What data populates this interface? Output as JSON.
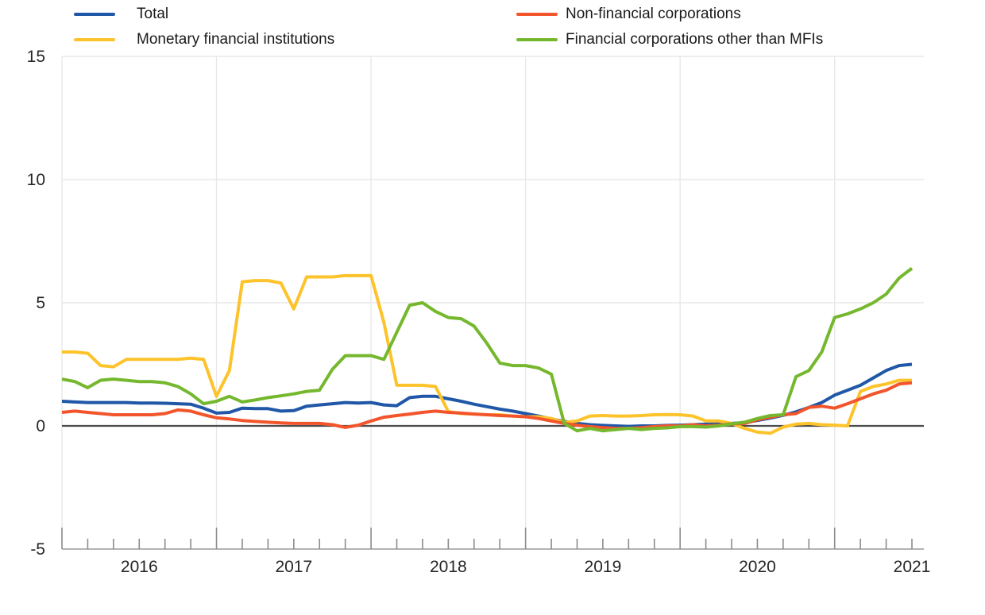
{
  "chart_data": {
    "type": "line",
    "title": "",
    "xlabel": "",
    "ylabel": "",
    "ylim": [
      -5,
      15
    ],
    "y_ticks": [
      -5,
      0,
      5,
      10,
      15
    ],
    "grid": {
      "horizontal_gridlines_at": [
        5,
        10,
        15
      ],
      "vertical_gridlines": "january-of-each-year",
      "zero_line": true,
      "zero_line_color": "#4d4d4d",
      "gridline_color": "#e8e8e8"
    },
    "legend": {
      "position": "top",
      "columns": 2
    },
    "x_axis": {
      "minor_tick_every_months": 2,
      "major_tick_at": "january",
      "year_labels": [
        "2016",
        "2017",
        "2018",
        "2019",
        "2020",
        "2021"
      ]
    },
    "x": [
      "2016-01",
      "2016-02",
      "2016-03",
      "2016-04",
      "2016-05",
      "2016-06",
      "2016-07",
      "2016-08",
      "2016-09",
      "2016-10",
      "2016-11",
      "2016-12",
      "2017-01",
      "2017-02",
      "2017-03",
      "2017-04",
      "2017-05",
      "2017-06",
      "2017-07",
      "2017-08",
      "2017-09",
      "2017-10",
      "2017-11",
      "2017-12",
      "2018-01",
      "2018-02",
      "2018-03",
      "2018-04",
      "2018-05",
      "2018-06",
      "2018-07",
      "2018-08",
      "2018-09",
      "2018-10",
      "2018-11",
      "2018-12",
      "2019-01",
      "2019-02",
      "2019-03",
      "2019-04",
      "2019-05",
      "2019-06",
      "2019-07",
      "2019-08",
      "2019-09",
      "2019-10",
      "2019-11",
      "2019-12",
      "2020-01",
      "2020-02",
      "2020-03",
      "2020-04",
      "2020-05",
      "2020-06",
      "2020-07",
      "2020-08",
      "2020-09",
      "2020-10",
      "2020-11",
      "2020-12",
      "2021-01",
      "2021-02",
      "2021-03",
      "2021-04",
      "2021-05",
      "2021-06",
      "2021-07"
    ],
    "series": [
      {
        "name": "Total",
        "color": "#2057a7",
        "values": [
          1.0,
          0.97,
          0.95,
          0.95,
          0.95,
          0.95,
          0.93,
          0.93,
          0.92,
          0.9,
          0.88,
          0.72,
          0.52,
          0.55,
          0.72,
          0.7,
          0.7,
          0.6,
          0.62,
          0.8,
          0.85,
          0.9,
          0.95,
          0.93,
          0.95,
          0.85,
          0.82,
          1.15,
          1.2,
          1.2,
          1.1,
          1.0,
          0.88,
          0.78,
          0.68,
          0.6,
          0.5,
          0.4,
          0.28,
          0.18,
          0.1,
          0.05,
          0.02,
          0.0,
          -0.02,
          0.0,
          0.0,
          0.02,
          0.03,
          0.05,
          0.07,
          0.08,
          0.1,
          0.13,
          0.22,
          0.32,
          0.43,
          0.57,
          0.75,
          0.95,
          1.25,
          1.45,
          1.65,
          1.95,
          2.25,
          2.45,
          2.5
        ]
      },
      {
        "name": "Monetary financial institutions",
        "color": "#fdc32b",
        "values": [
          3.0,
          3.0,
          2.95,
          2.45,
          2.4,
          2.7,
          2.7,
          2.7,
          2.7,
          2.7,
          2.75,
          2.7,
          1.2,
          2.25,
          5.85,
          5.9,
          5.9,
          5.8,
          4.75,
          6.05,
          6.05,
          6.05,
          6.1,
          6.1,
          6.1,
          4.2,
          1.65,
          1.65,
          1.65,
          1.6,
          0.58,
          0.5,
          0.48,
          0.45,
          0.45,
          0.4,
          0.37,
          0.37,
          0.3,
          0.14,
          0.2,
          0.4,
          0.42,
          0.4,
          0.4,
          0.42,
          0.45,
          0.46,
          0.45,
          0.4,
          0.2,
          0.2,
          0.1,
          -0.1,
          -0.25,
          -0.3,
          -0.05,
          0.07,
          0.1,
          0.05,
          0.03,
          0.0,
          1.4,
          1.6,
          1.7,
          1.85,
          1.85
        ]
      },
      {
        "name": "Non-financial corporations",
        "color": "#f2552c",
        "values": [
          0.55,
          0.6,
          0.55,
          0.5,
          0.45,
          0.45,
          0.45,
          0.45,
          0.5,
          0.65,
          0.6,
          0.45,
          0.33,
          0.28,
          0.22,
          0.18,
          0.15,
          0.12,
          0.1,
          0.1,
          0.1,
          0.05,
          -0.06,
          0.03,
          0.2,
          0.35,
          0.42,
          0.48,
          0.55,
          0.6,
          0.55,
          0.52,
          0.48,
          0.45,
          0.42,
          0.4,
          0.37,
          0.3,
          0.2,
          0.1,
          0.03,
          -0.03,
          -0.07,
          -0.1,
          -0.1,
          -0.07,
          -0.03,
          0.0,
          0.0,
          0.05,
          0.0,
          0.03,
          0.08,
          0.1,
          0.25,
          0.35,
          0.45,
          0.5,
          0.75,
          0.8,
          0.72,
          0.9,
          1.1,
          1.3,
          1.45,
          1.7,
          1.75
        ]
      },
      {
        "name": "Financial corporations other than MFIs",
        "color": "#75b82e",
        "values": [
          1.9,
          1.8,
          1.55,
          1.85,
          1.9,
          1.85,
          1.8,
          1.8,
          1.75,
          1.6,
          1.3,
          0.9,
          1.0,
          1.2,
          0.97,
          1.05,
          1.15,
          1.22,
          1.3,
          1.4,
          1.45,
          2.3,
          2.85,
          2.85,
          2.85,
          2.7,
          3.8,
          4.9,
          5.0,
          4.65,
          4.4,
          4.35,
          4.05,
          3.35,
          2.55,
          2.45,
          2.45,
          2.35,
          2.1,
          0.1,
          -0.2,
          -0.1,
          -0.2,
          -0.15,
          -0.1,
          -0.15,
          -0.1,
          -0.08,
          -0.03,
          -0.03,
          -0.05,
          0.0,
          0.08,
          0.15,
          0.3,
          0.42,
          0.45,
          2.0,
          2.25,
          3.0,
          4.4,
          4.55,
          4.75,
          5.0,
          5.35,
          6.0,
          6.4
        ]
      }
    ]
  }
}
